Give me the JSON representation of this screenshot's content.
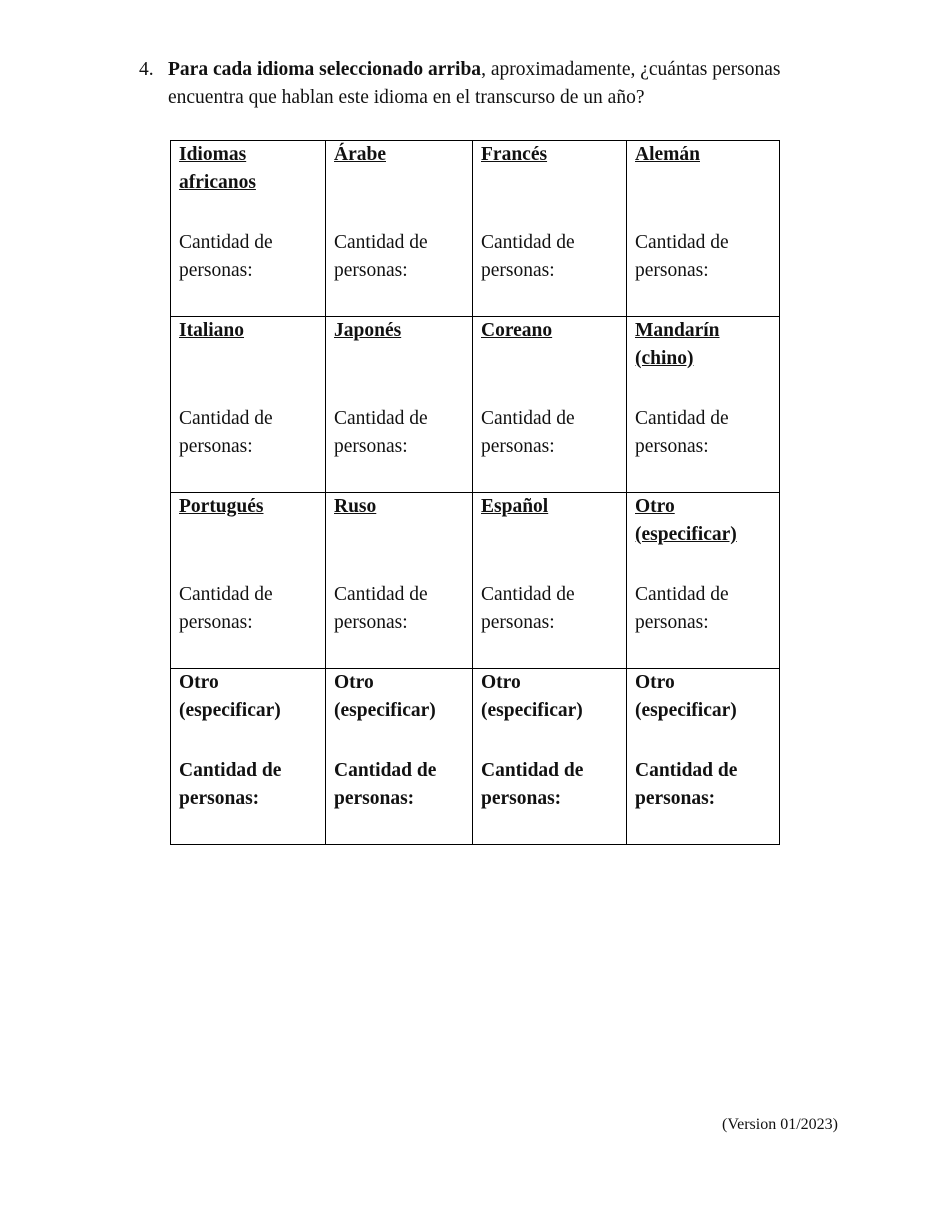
{
  "question": {
    "number": "4.",
    "bold_lead": "Para cada idioma seleccionado arriba",
    "rest": ", aproximadamente, ¿cuántas personas encuentra que hablan este idioma en el transcurso de un año?"
  },
  "table": {
    "rows": [
      [
        {
          "label": "Idiomas africanos",
          "count": "Cantidad de personas:"
        },
        {
          "label": "Árabe",
          "count": "Cantidad de personas:"
        },
        {
          "label": "Francés",
          "count": "Cantidad de personas:"
        },
        {
          "label": "Alemán",
          "count": "Cantidad de personas:"
        }
      ],
      [
        {
          "label": "Italiano",
          "count": "Cantidad de personas:"
        },
        {
          "label": "Japonés",
          "count": "Cantidad de personas:"
        },
        {
          "label": "Coreano",
          "count": "Cantidad de personas:"
        },
        {
          "label": "Mandarín (chino)",
          "count": "Cantidad de personas:"
        }
      ],
      [
        {
          "label": "Portugués",
          "count": "Cantidad de personas:"
        },
        {
          "label": "Ruso",
          "count": "Cantidad de personas:"
        },
        {
          "label": "Español",
          "count": "Cantidad de personas:"
        },
        {
          "label": "Otro (especificar)",
          "count": "Cantidad de personas:"
        }
      ],
      [
        {
          "label": "Otro (especificar)",
          "count": "Cantidad de personas:"
        },
        {
          "label": "Otro (especificar)",
          "count": "Cantidad de personas:"
        },
        {
          "label": "Otro (especificar)",
          "count": "Cantidad de personas:"
        },
        {
          "label": "Otro (especificar)",
          "count": "Cantidad de personas:"
        }
      ]
    ]
  },
  "footer": {
    "version": "(Version 01/2023)"
  }
}
